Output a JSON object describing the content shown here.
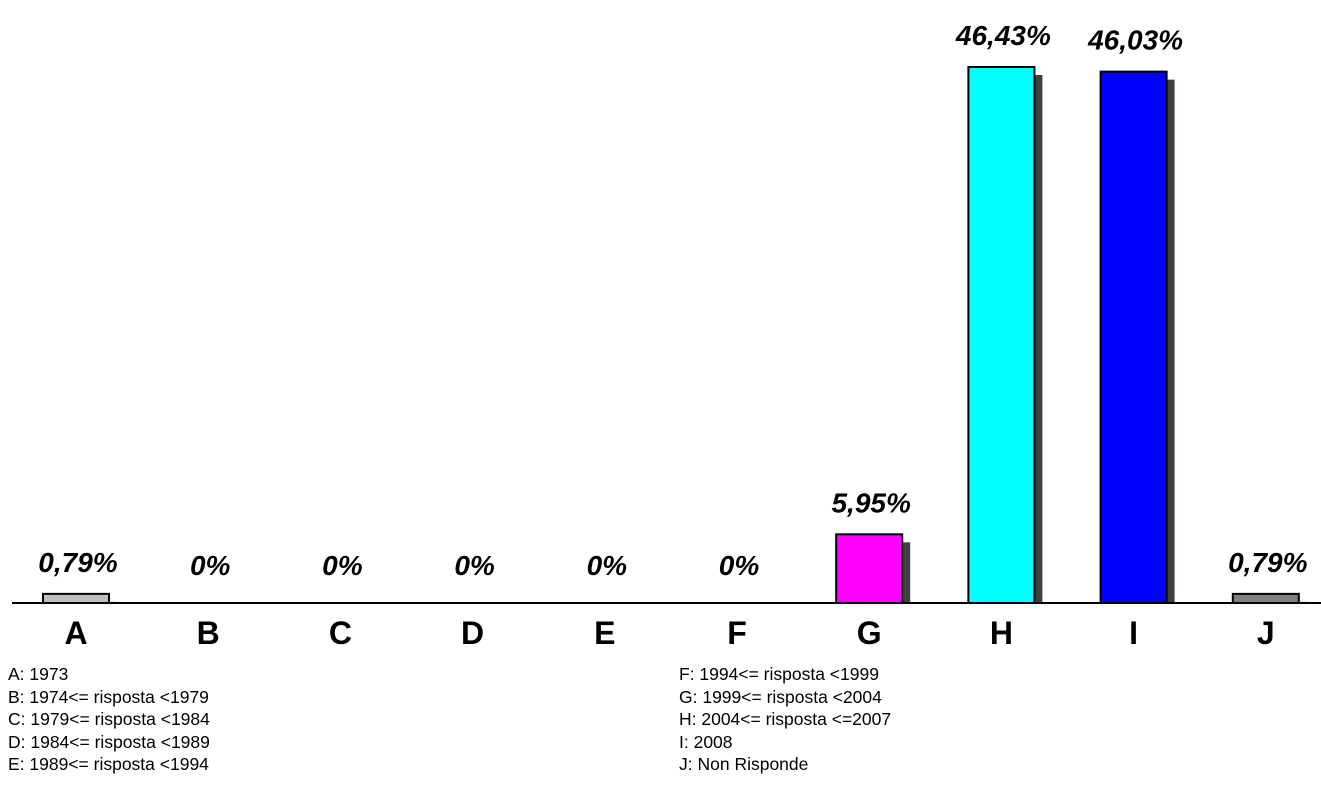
{
  "chart_data": {
    "type": "bar",
    "categories": [
      "A",
      "B",
      "C",
      "D",
      "E",
      "F",
      "G",
      "H",
      "I",
      "J"
    ],
    "values": [
      0.79,
      0,
      0,
      0,
      0,
      0,
      5.95,
      46.43,
      46.03,
      0.79
    ],
    "value_labels": [
      "0,79%",
      "0%",
      "0%",
      "0%",
      "0%",
      "0%",
      "5,95%",
      "46,43%",
      "46,03%",
      "0,79%"
    ],
    "colors": [
      "#c0c0c0",
      "#000000",
      "#000000",
      "#000000",
      "#000000",
      "#000000",
      "#ff00ff",
      "#00ffff",
      "#0000ff",
      "#808080"
    ],
    "ylim": [
      0,
      46.43
    ],
    "grid": false,
    "title": "",
    "xlabel": "",
    "ylabel": ""
  },
  "legend": {
    "left": [
      "A: 1973",
      "B: 1974<= risposta <1979",
      "C: 1979<= risposta <1984",
      "D: 1984<= risposta <1989",
      "E: 1989<= risposta <1994"
    ],
    "right": [
      "F: 1994<= risposta <1999",
      "G: 1999<= risposta <2004",
      "H: 2004<= risposta <=2007",
      "I: 2008",
      "J: Non Risponde"
    ]
  }
}
